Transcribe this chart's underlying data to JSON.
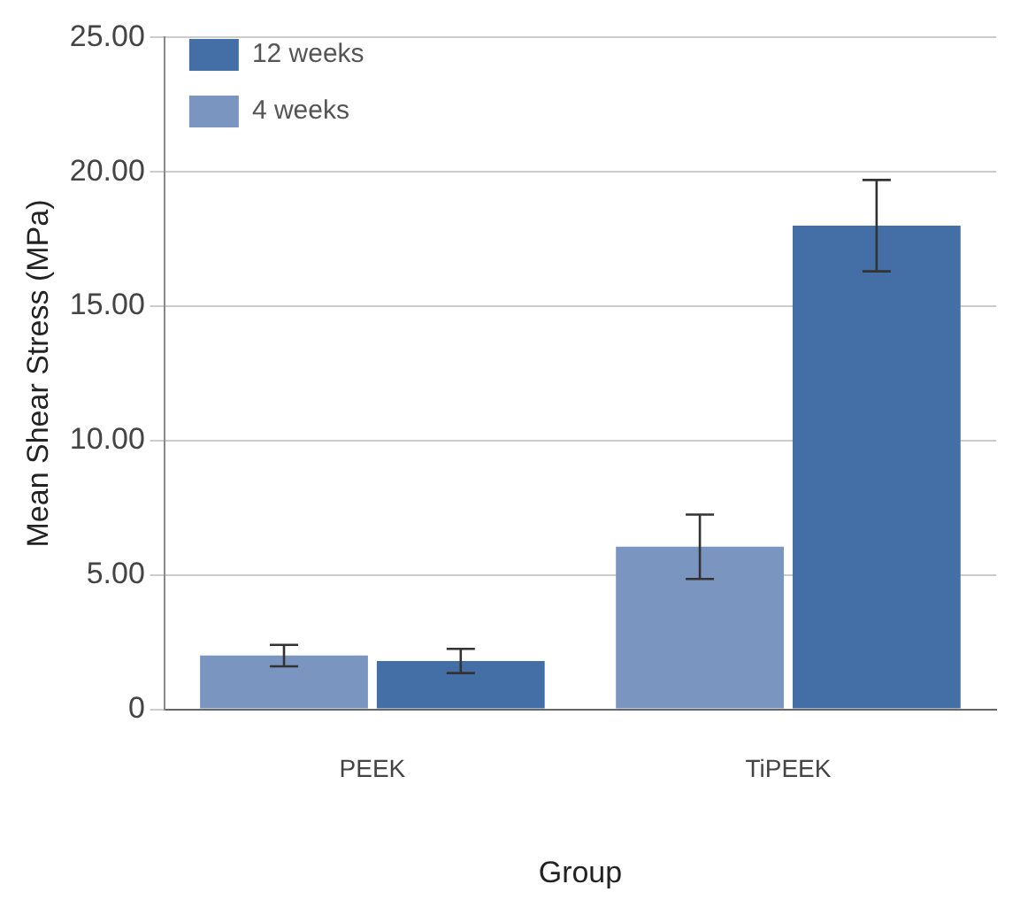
{
  "chart_data": {
    "type": "bar",
    "xlabel": "Group",
    "ylabel": "Mean Shear Stress (MPa)",
    "categories": [
      "PEEK",
      "TiPEEK"
    ],
    "series": [
      {
        "name": "4 weeks",
        "color": "#7a96c0",
        "values": [
          2.0,
          6.05
        ],
        "errors": [
          0.4,
          1.2
        ]
      },
      {
        "name": "12 weeks",
        "color": "#446ea6",
        "values": [
          1.8,
          18.0
        ],
        "errors": [
          0.45,
          1.7
        ]
      }
    ],
    "ylim": [
      0,
      25
    ],
    "yticks": [
      {
        "value": 0,
        "label": "0"
      },
      {
        "value": 5,
        "label": "5.00"
      },
      {
        "value": 10,
        "label": "10.00"
      },
      {
        "value": 15,
        "label": "15.00"
      },
      {
        "value": 20,
        "label": "20.00"
      },
      {
        "value": 25,
        "label": "25.00"
      }
    ],
    "grid": "y",
    "legend": "top left"
  }
}
